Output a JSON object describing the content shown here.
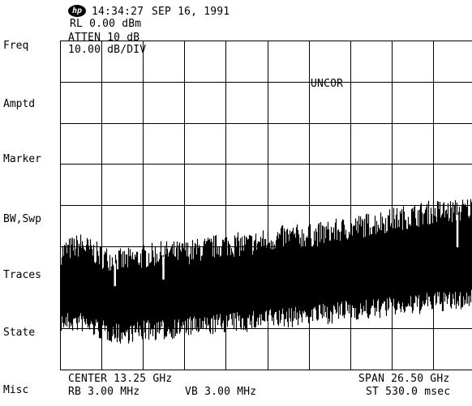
{
  "header": {
    "logo": "hp",
    "time": "14:34:27",
    "date": "SEP 16, 1991"
  },
  "settings": {
    "ref_level": "RL 0.00 dBm",
    "atten": "ATTEN 10 dB",
    "scale": "10.00 dB/DIV",
    "status": "UNCOR"
  },
  "softkeys": [
    "Freq",
    "Amptd",
    "Marker",
    "BW,Swp",
    "Traces",
    "State",
    "Misc"
  ],
  "footer": {
    "center": "CENTER 13.25 GHz",
    "span": "SPAN 26.50 GHz",
    "rbw": "RB 3.00 MHz",
    "vbw": "VB 3.00 MHz",
    "sweep": "ST 530.0 msec"
  },
  "chart_data": {
    "type": "line",
    "xlabel": "",
    "ylabel": "",
    "x_range_ghz": [
      0,
      26.5
    ],
    "y_range_db": [
      -80,
      0
    ],
    "grid": true,
    "x_divisions": 10,
    "y_divisions": 8,
    "series": [
      {
        "noise_top_db": [
          -51,
          -49,
          -52,
          -53,
          -52,
          -51,
          -51,
          -50,
          -49,
          -49,
          -48,
          -47,
          -47,
          -46,
          -45,
          -44,
          -43,
          -42,
          -41,
          -41,
          -40
        ],
        "noise_bottom_db": [
          -68,
          -68,
          -70,
          -71,
          -70,
          -70,
          -69,
          -69,
          -68,
          -68,
          -67,
          -67,
          -66,
          -66,
          -65,
          -65,
          -64,
          -64,
          -63,
          -63,
          -62
        ],
        "spurs_ghz": [
          3.5,
          6.6,
          25.4
        ]
      }
    ]
  }
}
